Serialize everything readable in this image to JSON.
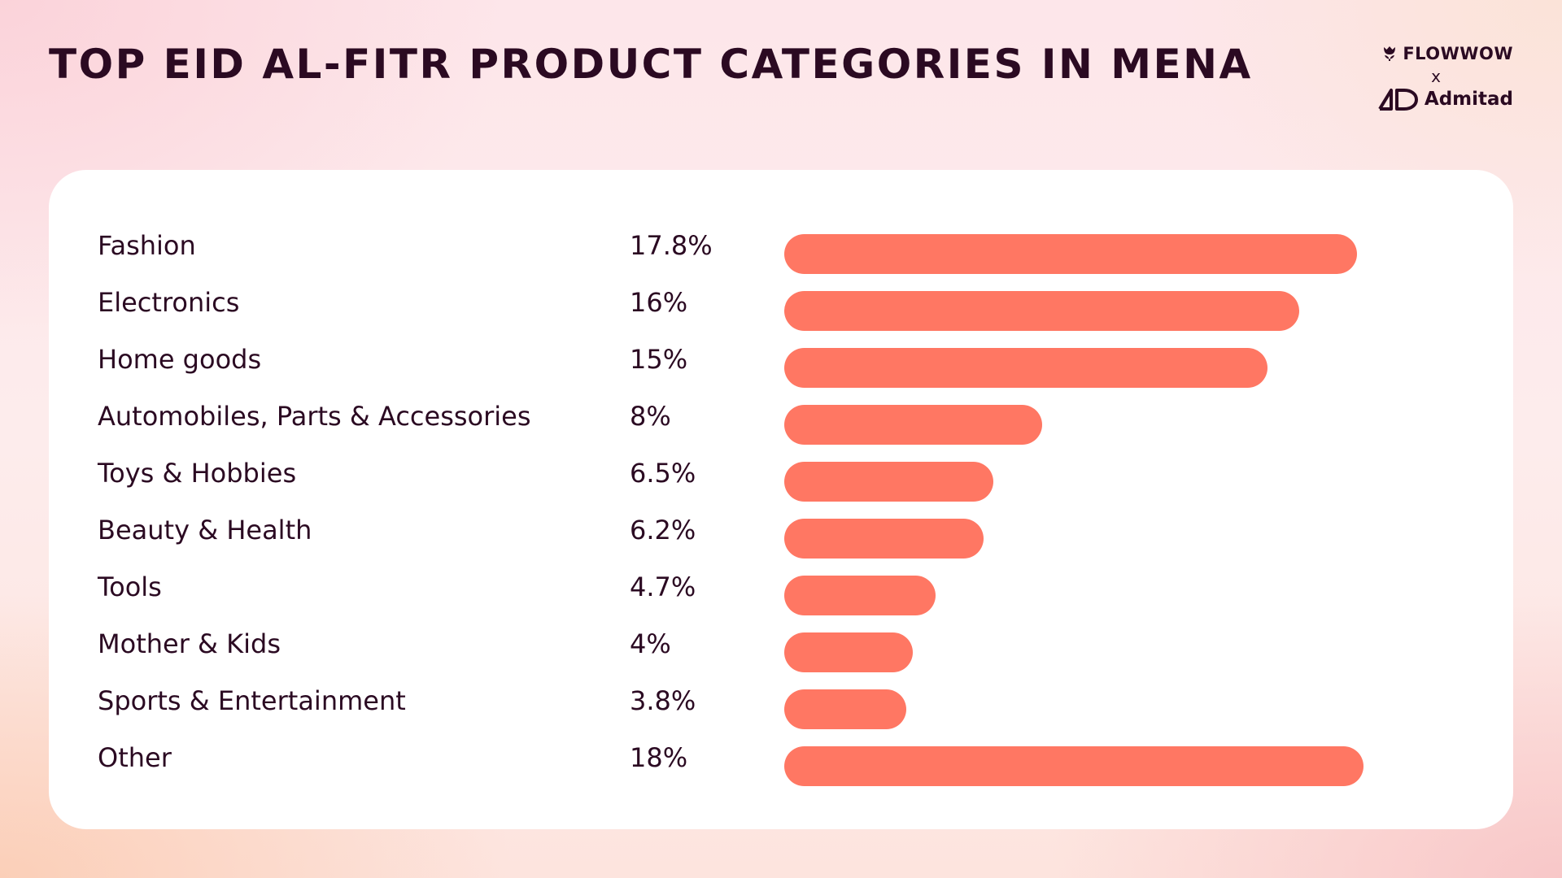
{
  "title": "TOP EID AL-FITR PRODUCT CATEGORIES IN MENA",
  "brand": {
    "partner1": "FLOWWOW",
    "separator": "x",
    "partner2": "Admitad",
    "partner1_icon": "tulip-icon",
    "partner2_icon": "ad-logo-icon"
  },
  "colors": {
    "bar": "#ff7763",
    "text": "#2b0a22",
    "card": "#ffffff"
  },
  "chart_data": {
    "type": "bar",
    "orientation": "horizontal",
    "title": "TOP EID AL-FITR PRODUCT CATEGORIES IN MENA",
    "categories": [
      "Fashion",
      "Electronics",
      "Home goods",
      "Automobiles, Parts & Accessories",
      "Toys & Hobbies",
      "Beauty & Health",
      "Tools",
      "Mother & Kids",
      "Sports & Entertainment",
      "Other"
    ],
    "values": [
      17.8,
      16,
      15,
      8,
      6.5,
      6.2,
      4.7,
      4,
      3.8,
      18
    ],
    "value_labels": [
      "17.8%",
      "16%",
      "15%",
      "8%",
      "6.5%",
      "6.2%",
      "4.7%",
      "4%",
      "3.8%",
      "18%"
    ],
    "xlim": [
      0,
      18.5
    ],
    "grid": false,
    "legend": "none"
  }
}
